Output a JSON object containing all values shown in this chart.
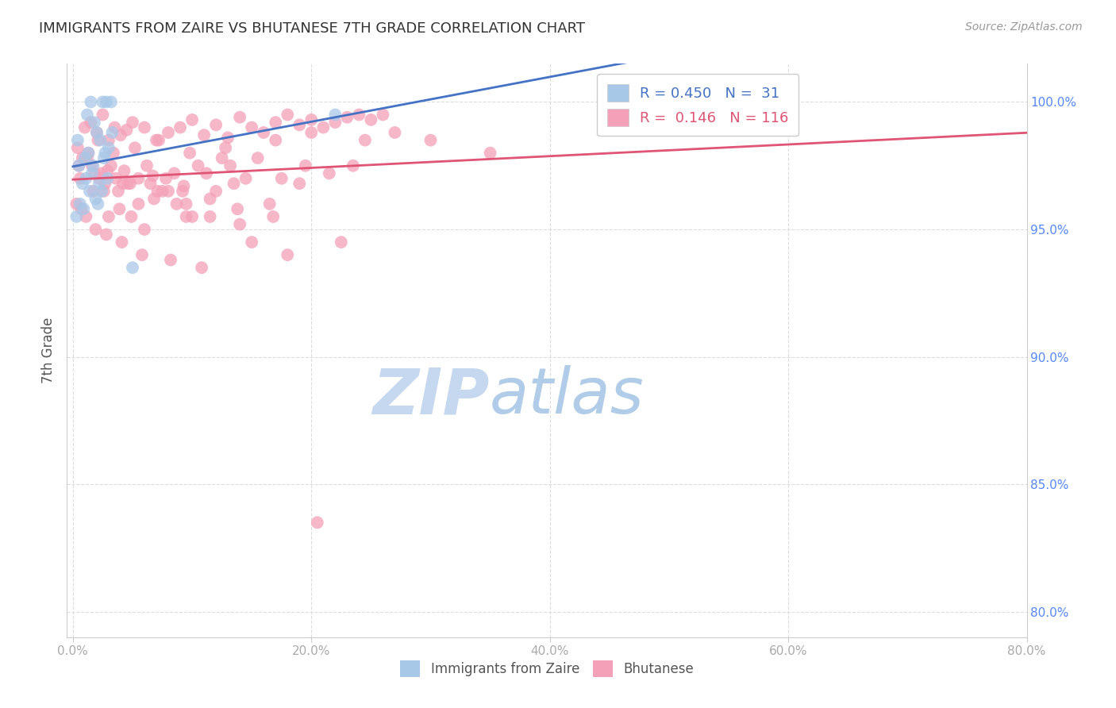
{
  "title": "IMMIGRANTS FROM ZAIRE VS BHUTANESE 7TH GRADE CORRELATION CHART",
  "source": "Source: ZipAtlas.com",
  "ylabel": "7th Grade",
  "x_tick_labels": [
    "0.0%",
    "20.0%",
    "40.0%",
    "60.0%",
    "80.0%"
  ],
  "x_tick_vals": [
    0.0,
    20.0,
    40.0,
    60.0,
    80.0
  ],
  "y_tick_labels": [
    "80.0%",
    "85.0%",
    "90.0%",
    "95.0%",
    "100.0%"
  ],
  "y_tick_vals": [
    80.0,
    85.0,
    90.0,
    95.0,
    100.0
  ],
  "xlim": [
    -0.5,
    80.0
  ],
  "ylim": [
    79.0,
    101.5
  ],
  "legend_label1": "Immigrants from Zaire",
  "legend_label2": "Bhutanese",
  "R1": 0.45,
  "N1": 31,
  "R2": 0.146,
  "N2": 116,
  "color1": "#a8c8e8",
  "color2": "#f4a0b8",
  "trendline_color1": "#4472c4",
  "trendline_color2": "#e05575",
  "title_color": "#333333",
  "grid_color": "#dddddd",
  "watermark_zip_color": "#c5d8f0",
  "watermark_atlas_color": "#b0cce8",
  "blue_scatter_x": [
    2.5,
    2.8,
    3.2,
    1.2,
    1.8,
    2.0,
    2.3,
    2.7,
    3.0,
    0.5,
    1.0,
    1.3,
    1.6,
    0.8,
    1.1,
    1.4,
    1.7,
    2.1,
    2.4,
    2.6,
    2.9,
    3.3,
    0.3,
    0.6,
    0.9,
    1.9,
    2.2,
    22.0,
    5.0,
    0.4,
    1.5
  ],
  "blue_scatter_y": [
    100.0,
    100.0,
    100.0,
    99.5,
    99.2,
    98.8,
    98.5,
    98.0,
    98.2,
    97.5,
    97.8,
    98.0,
    97.2,
    96.8,
    97.0,
    96.5,
    97.5,
    96.0,
    96.5,
    97.8,
    97.0,
    98.8,
    95.5,
    96.0,
    95.8,
    96.2,
    96.8,
    99.5,
    93.5,
    98.5,
    100.0
  ],
  "pink_scatter_x": [
    1.0,
    1.5,
    2.0,
    2.5,
    3.0,
    3.5,
    4.0,
    4.5,
    5.0,
    6.0,
    7.0,
    8.0,
    9.0,
    10.0,
    11.0,
    12.0,
    13.0,
    14.0,
    15.0,
    16.0,
    17.0,
    18.0,
    19.0,
    20.0,
    21.0,
    22.0,
    23.0,
    24.0,
    25.0,
    26.0,
    0.5,
    1.2,
    1.8,
    2.2,
    2.7,
    3.2,
    3.8,
    4.3,
    5.5,
    6.5,
    7.5,
    8.5,
    9.5,
    10.5,
    11.5,
    12.5,
    13.5,
    14.5,
    0.8,
    1.6,
    2.4,
    3.6,
    4.8,
    6.2,
    7.8,
    9.2,
    11.2,
    13.2,
    15.5,
    17.5,
    19.5,
    21.5,
    23.5,
    0.3,
    0.7,
    1.1,
    1.9,
    2.8,
    4.1,
    5.8,
    8.2,
    10.8,
    15.0,
    18.0,
    22.5,
    0.4,
    1.3,
    2.1,
    3.4,
    5.2,
    7.2,
    9.8,
    12.8,
    17.0,
    20.0,
    24.5,
    27.0,
    30.0,
    35.0,
    3.0,
    6.0,
    10.0,
    14.0,
    2.6,
    5.5,
    4.6,
    8.0,
    16.5,
    12.0,
    19.0,
    6.8,
    9.5,
    3.9,
    7.1,
    11.5,
    13.8,
    4.9,
    8.7,
    16.8,
    20.5,
    0.6,
    1.7,
    2.9,
    4.2,
    6.7,
    9.3
  ],
  "pink_scatter_y": [
    99.0,
    99.2,
    98.8,
    99.5,
    98.5,
    99.0,
    98.7,
    98.9,
    99.2,
    99.0,
    98.5,
    98.8,
    99.0,
    99.3,
    98.7,
    99.1,
    98.6,
    99.4,
    99.0,
    98.8,
    99.2,
    99.5,
    99.1,
    99.3,
    99.0,
    99.2,
    99.4,
    99.5,
    99.3,
    99.5,
    97.5,
    97.8,
    97.2,
    97.0,
    96.8,
    97.5,
    96.5,
    97.3,
    97.0,
    96.8,
    96.5,
    97.2,
    96.0,
    97.5,
    96.2,
    97.8,
    96.8,
    97.0,
    97.8,
    97.5,
    97.2,
    97.0,
    96.8,
    97.5,
    97.0,
    96.5,
    97.2,
    97.5,
    97.8,
    97.0,
    97.5,
    97.2,
    97.5,
    96.0,
    95.8,
    95.5,
    95.0,
    94.8,
    94.5,
    94.0,
    93.8,
    93.5,
    94.5,
    94.0,
    94.5,
    98.2,
    98.0,
    98.5,
    98.0,
    98.2,
    98.5,
    98.0,
    98.2,
    98.5,
    98.8,
    98.5,
    98.8,
    98.5,
    98.0,
    95.5,
    95.0,
    95.5,
    95.2,
    96.5,
    96.0,
    96.8,
    96.5,
    96.0,
    96.5,
    96.8,
    96.2,
    95.5,
    95.8,
    96.5,
    95.5,
    95.8,
    95.5,
    96.0,
    95.5,
    83.5,
    97.0,
    96.5,
    97.3,
    96.8,
    97.1,
    96.7
  ]
}
